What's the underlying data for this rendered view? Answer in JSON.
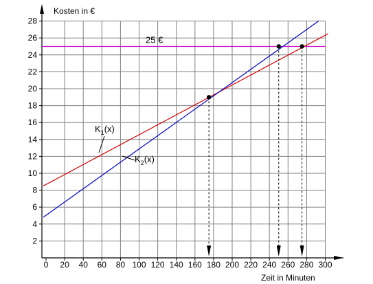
{
  "chart_data": {
    "type": "line",
    "title": "",
    "ylabel": "Kosten in €",
    "xlabel": "Zeit in Minuten",
    "xlim": [
      0,
      300
    ],
    "ylim": [
      0,
      28
    ],
    "x_ticks": [
      0,
      20,
      40,
      60,
      80,
      100,
      120,
      140,
      160,
      180,
      200,
      220,
      240,
      260,
      280,
      300
    ],
    "y_ticks": [
      2,
      4,
      6,
      8,
      10,
      12,
      14,
      16,
      18,
      20,
      22,
      24,
      26,
      28
    ],
    "grid": true,
    "series": [
      {
        "name": "K1(x)",
        "label_main": "K",
        "label_sub": "1",
        "label_tail": "(x)",
        "color": "#dd0000",
        "x": [
          -3,
          303
        ],
        "y": [
          8.5,
          26.5
        ]
      },
      {
        "name": "K2(x)",
        "label_main": "K",
        "label_sub": "2",
        "label_tail": "(x)",
        "color": "#0000cc",
        "x": [
          -3,
          303
        ],
        "y": [
          4.8,
          28.8
        ]
      }
    ],
    "reference_line": {
      "label": "25 €",
      "y": 25,
      "color": "#cc00cc"
    },
    "points": [
      {
        "x": 175,
        "y": 19
      },
      {
        "x": 250,
        "y": 25
      },
      {
        "x": 275,
        "y": 25
      }
    ]
  }
}
